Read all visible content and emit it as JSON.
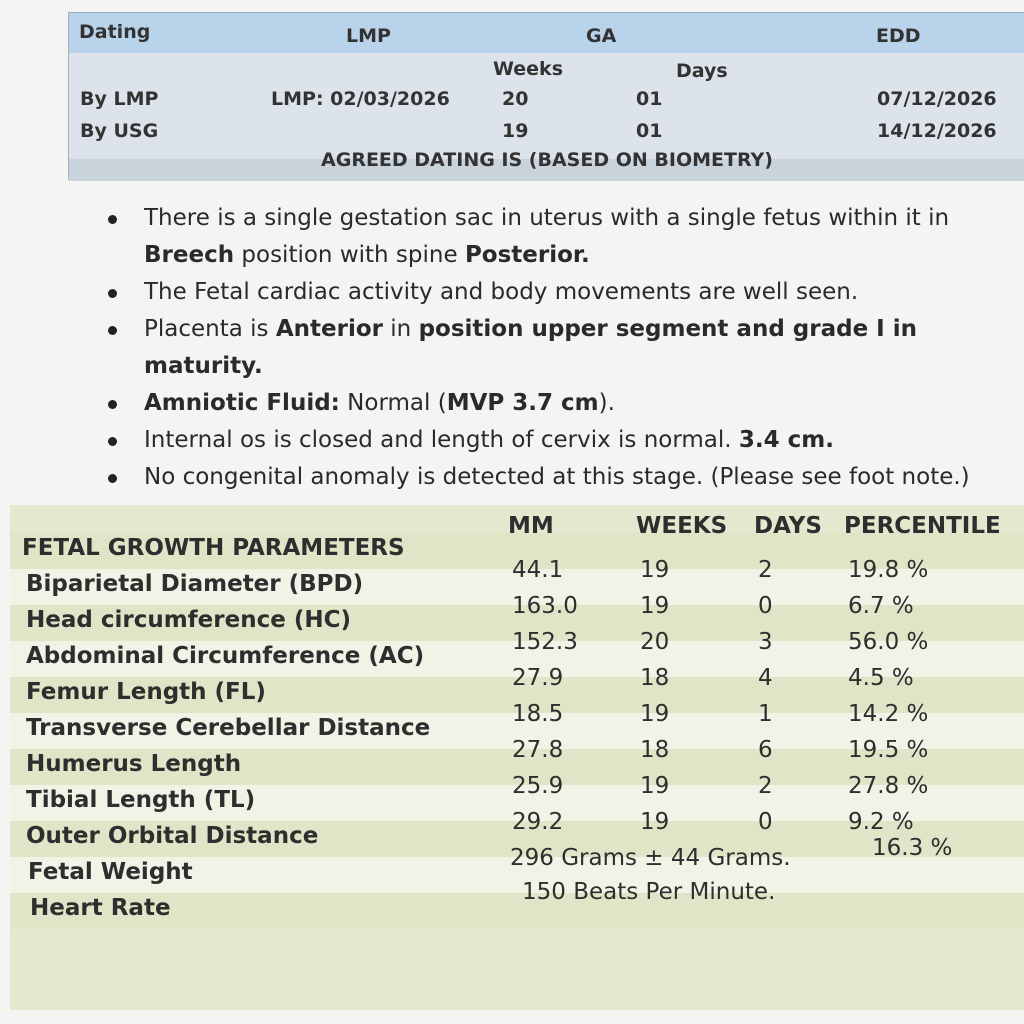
{
  "dating_table": {
    "header": [
      "Dating",
      "LMP",
      "GA",
      "EDD"
    ],
    "subheader": [
      "Weeks",
      "Days"
    ],
    "rows": [
      [
        "By LMP",
        "LMP: 02/03/2026",
        "20",
        "01",
        "07/12/2026"
      ],
      [
        "By USG",
        null,
        "19",
        "01",
        "14/12/2026"
      ]
    ],
    "footer": "AGREED DATING IS (BASED ON BIOMETRY)"
  },
  "findings": [
    [
      {
        "text": "There is a single gestation sac in uterus with a single fetus within it in "
      },
      {
        "text": "Breech",
        "bold": true
      },
      {
        "text": " position with spine "
      },
      {
        "text": "Posterior.",
        "bold": true
      }
    ],
    [
      {
        "text": "The Fetal cardiac activity and body movements are well seen."
      }
    ],
    [
      {
        "text": "Placenta is "
      },
      {
        "text": "Anterior",
        "bold": true
      },
      {
        "text": " in "
      },
      {
        "text": "position upper segment and grade I in maturity.",
        "bold": true
      }
    ],
    [
      {
        "text": "Amniotic Fluid:",
        "bold": true
      },
      {
        "text": "   Normal ("
      },
      {
        "text": "MVP 3.7 cm",
        "bold": true
      },
      {
        "text": ")."
      }
    ],
    [
      {
        "text": "Internal os is closed and length of cervix is normal. "
      },
      {
        "text": "3.4 cm.",
        "bold": true
      }
    ],
    [
      {
        "text": "No congenital anomaly is detected at this stage. (Please see foot note.)"
      }
    ]
  ],
  "growth_table": {
    "header": [
      "FETAL GROWTH PARAMETERS",
      "MM",
      "WEEKS",
      "DAYS",
      "PERCENTILE"
    ],
    "rows": [
      [
        "Biparietal Diameter (BPD)",
        "44.1",
        "19",
        "2",
        "19.8 %"
      ],
      [
        "Head circumference (HC)",
        "163.0",
        "19",
        "0",
        "6.7 %"
      ],
      [
        "Abdominal Circumference (AC)",
        "152.3",
        "20",
        "3",
        "56.0 %"
      ],
      [
        "Femur Length (FL)",
        "27.9",
        "18",
        "4",
        "4.5 %"
      ],
      [
        "Transverse Cerebellar Distance",
        "18.5",
        "19",
        "1",
        "14.2 %"
      ],
      [
        "Humerus Length",
        "27.8",
        "18",
        "6",
        "19.5 %"
      ],
      [
        "Tibial Length (TL)",
        "25.9",
        "19",
        "2",
        "27.8 %"
      ],
      [
        "Outer Orbital Distance",
        "29.2",
        "19",
        "0",
        "9.2 %"
      ]
    ],
    "fetal_weight": [
      "Fetal Weight",
      "296 Grams ± 44 Grams.",
      "16.3 %"
    ],
    "heart_rate": [
      "Heart Rate",
      "150 Beats Per Minute."
    ]
  }
}
